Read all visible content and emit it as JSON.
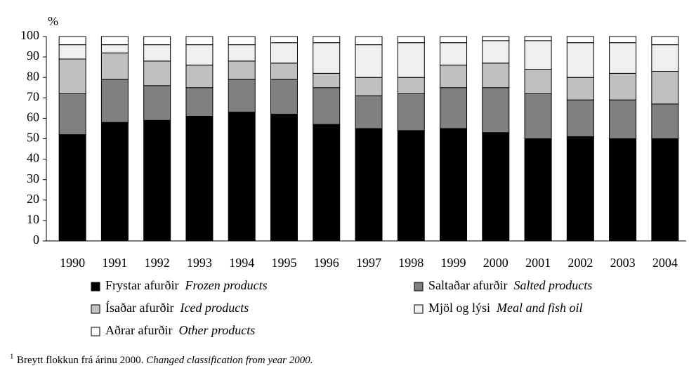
{
  "chart_data": {
    "type": "stacked_bar",
    "y_unit_label": "%",
    "categories": [
      "1990",
      "1991",
      "1992",
      "1993",
      "1994",
      "1995",
      "1996",
      "1997",
      "1998",
      "1999",
      "2000",
      "2001",
      "2002",
      "2003",
      "2004"
    ],
    "series": [
      {
        "name": "Frystar afurðir",
        "name_en": "Frozen products",
        "color": "#000000",
        "values": [
          52,
          58,
          59,
          61,
          63,
          62,
          57,
          55,
          54,
          55,
          53,
          50,
          51,
          50,
          50
        ]
      },
      {
        "name": "Saltaðar afurðir",
        "name_en": "Salted products",
        "color": "#808080",
        "values": [
          20,
          21,
          17,
          14,
          16,
          17,
          18,
          16,
          18,
          20,
          22,
          22,
          18,
          19,
          17
        ]
      },
      {
        "name": "Ísaðar afurðir",
        "name_en": "Iced products",
        "color": "#c0c0c0",
        "values": [
          17,
          13,
          12,
          11,
          9,
          8,
          7,
          9,
          8,
          11,
          12,
          12,
          11,
          13,
          16
        ]
      },
      {
        "name": "Mjöl og lýsi",
        "name_en": "Meal and fish oil",
        "color": "#efefef",
        "values": [
          7,
          4,
          8,
          10,
          8,
          10,
          15,
          16,
          17,
          11,
          11,
          14,
          17,
          15,
          13
        ]
      },
      {
        "name": "Aðrar afurðir",
        "name_en": "Other products",
        "color": "#ffffff",
        "values": [
          4,
          4,
          4,
          4,
          4,
          3,
          3,
          4,
          3,
          3,
          2,
          2,
          3,
          3,
          4
        ]
      }
    ],
    "ylim": [
      0,
      100
    ],
    "yticks": [
      0,
      10,
      20,
      30,
      40,
      50,
      60,
      70,
      80,
      90,
      100
    ],
    "footnote_marker": "1",
    "footnote": "Breytt flokkun frá árinu 2000.",
    "footnote_en": "Changed classification from year 2000."
  }
}
